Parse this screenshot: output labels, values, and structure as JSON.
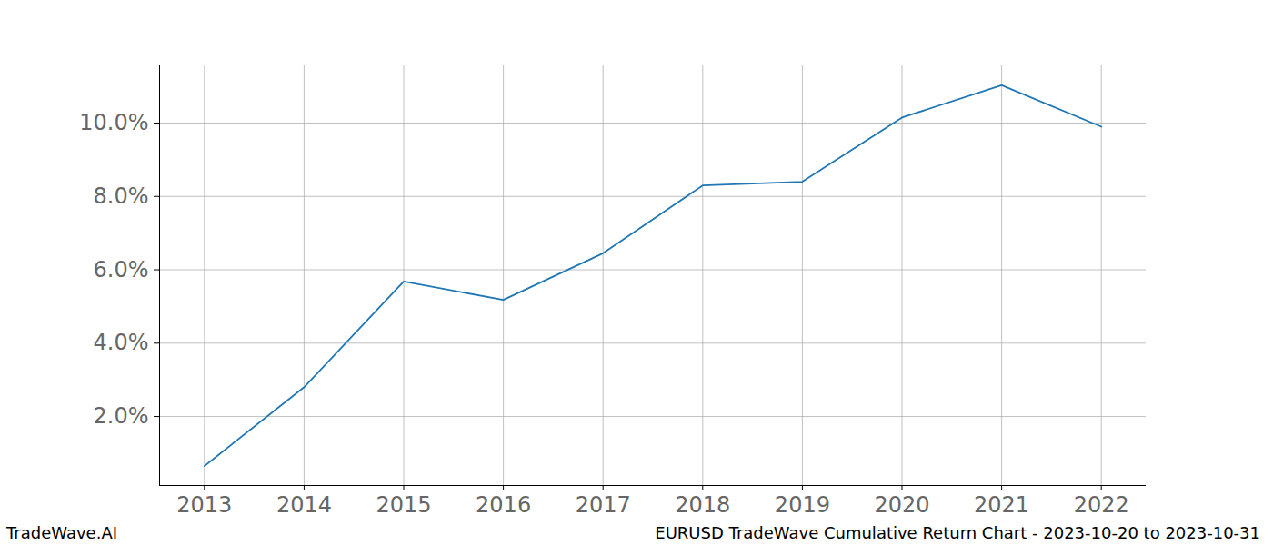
{
  "chart_data": {
    "type": "line",
    "x": [
      2013,
      2014,
      2015,
      2016,
      2017,
      2018,
      2019,
      2020,
      2021,
      2022
    ],
    "values": [
      0.65,
      2.8,
      5.68,
      5.18,
      6.45,
      8.3,
      8.4,
      10.15,
      11.03,
      9.9
    ],
    "color": "#1f77b4",
    "xlim": [
      2012.55,
      2022.45
    ],
    "xticks": [
      2013,
      2014,
      2015,
      2016,
      2017,
      2018,
      2019,
      2020,
      2021,
      2022
    ],
    "ylim": [
      0.12,
      11.56
    ],
    "yticks": [
      {
        "value": 2,
        "label": "2.0%"
      },
      {
        "value": 4,
        "label": "4.0%"
      },
      {
        "value": 6,
        "label": "6.0%"
      },
      {
        "value": 8,
        "label": "8.0%"
      },
      {
        "value": 10,
        "label": "10.0%"
      }
    ],
    "grid": true,
    "footer": {
      "left": "TradeWave.AI",
      "right": "EURUSD TradeWave Cumulative Return Chart - 2023-10-20 to 2023-10-31"
    }
  }
}
